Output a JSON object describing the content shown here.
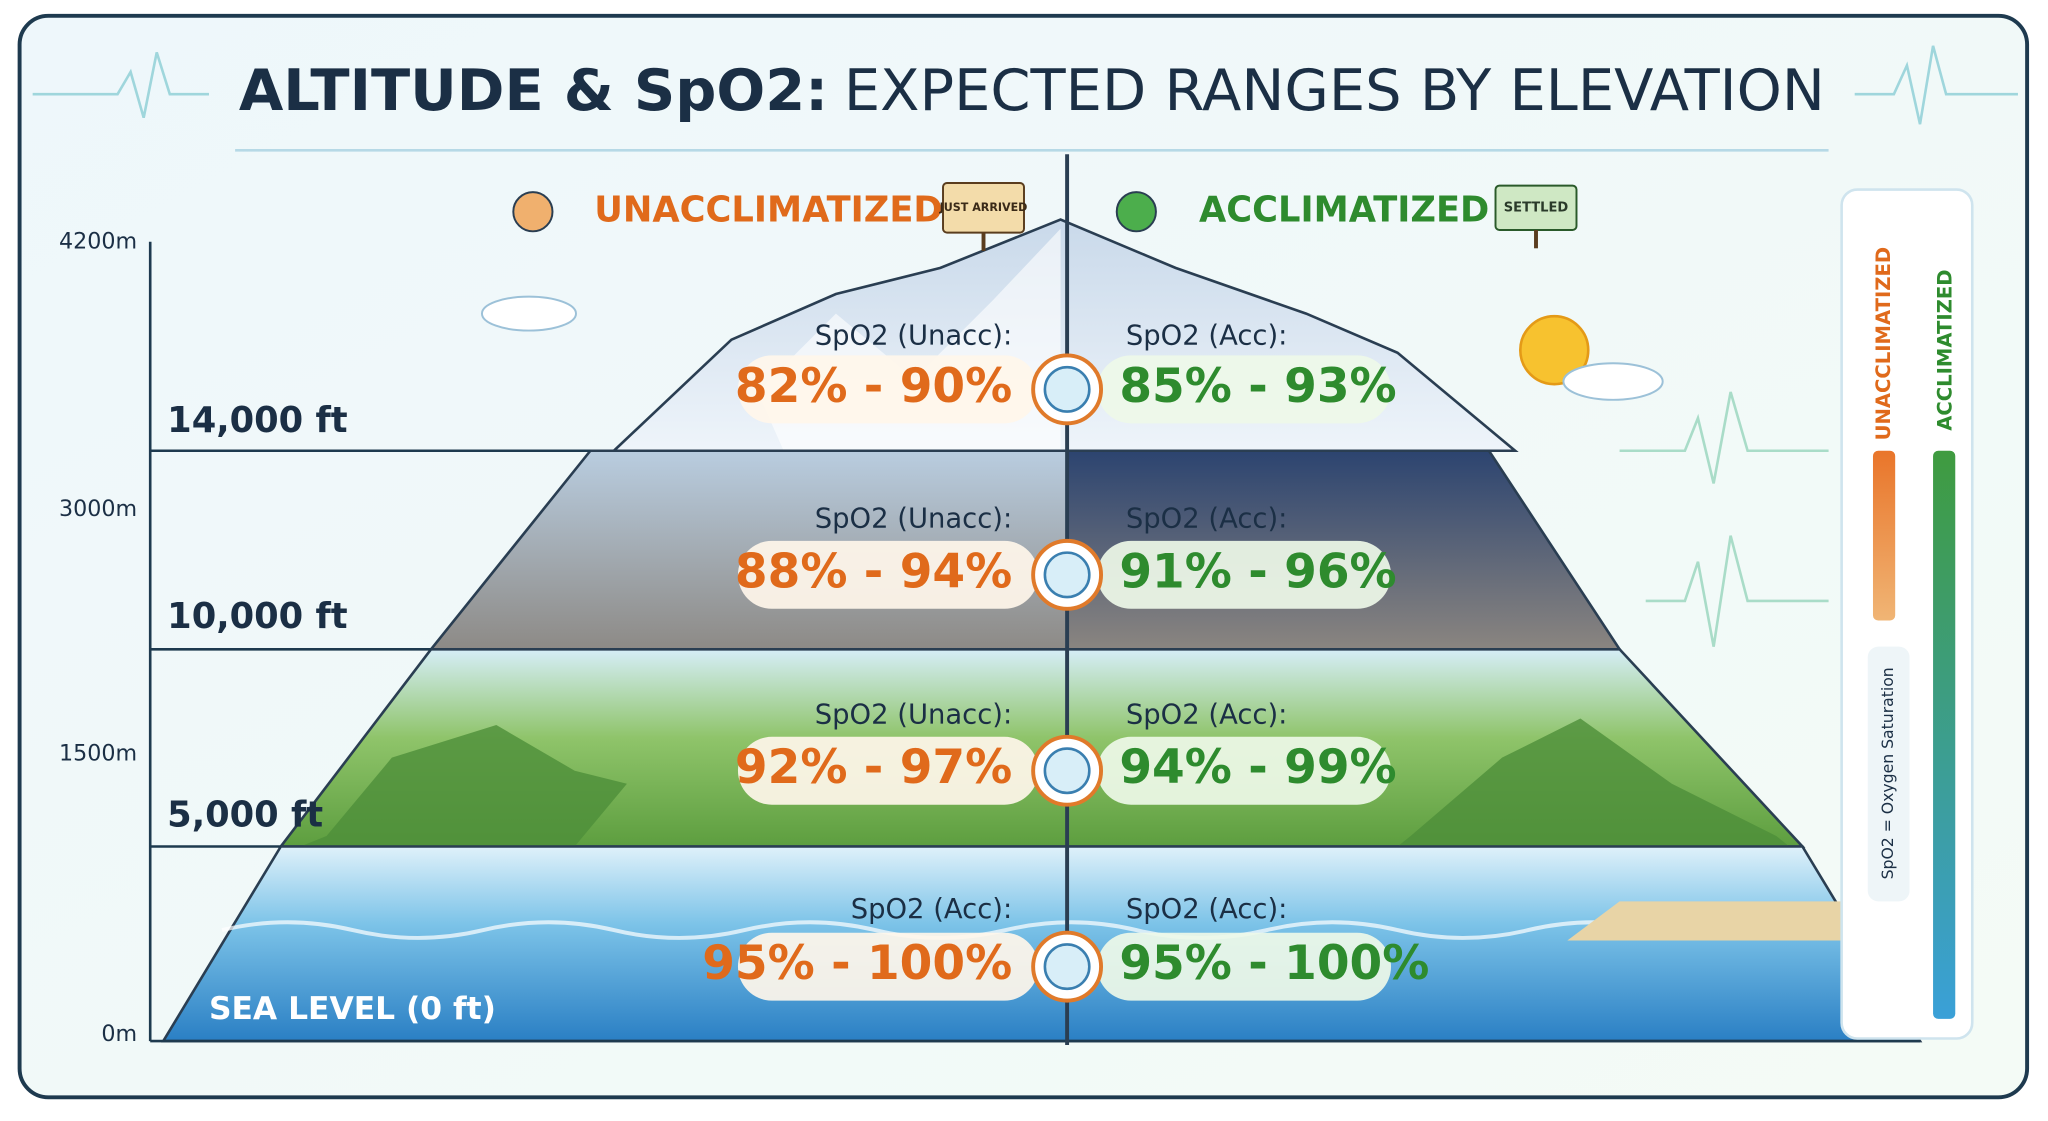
{
  "header": {
    "title_bold": "ALTITUDE & SpO2:",
    "title_rest": "EXPECTED RANGES BY ELEVATION"
  },
  "columns": [
    {
      "label": "UNACCLIMATIZED",
      "sign": "JUST ARRIVED"
    },
    {
      "label": "ACCLIMATIZED",
      "sign": "SETTLED"
    }
  ],
  "meter_ticks": [
    "4200m",
    "3000m",
    "1500m",
    "0m"
  ],
  "levels": [
    {
      "elevation": "14,000 ft",
      "left_label": "SpO2 (Unacc):",
      "left_range": "82% - 90%",
      "right_label": "SpO2 (Acc):",
      "right_range": "85% - 93%"
    },
    {
      "elevation": "10,000 ft",
      "left_label": "SpO2 (Unacc):",
      "left_range": "88% - 94%",
      "right_label": "SpO2 (Acc):",
      "right_range": "91% - 96%"
    },
    {
      "elevation": "5,000 ft",
      "left_label": "SpO2 (Unacc):",
      "left_range": "92% - 97%",
      "right_label": "SpO2 (Acc):",
      "right_range": "94% - 99%"
    },
    {
      "elevation": "SEA LEVEL (0 ft)",
      "left_label": "SpO2 (Acc):",
      "left_range": "95% - 100%",
      "right_label": "SpO2 (Acc):",
      "right_range": "95% - 100%"
    }
  ],
  "legend": {
    "items": [
      "UNACCLIMATIZED",
      "ACCLIMATIZED"
    ],
    "note": "SpO2 = Oxygen Saturation"
  }
}
